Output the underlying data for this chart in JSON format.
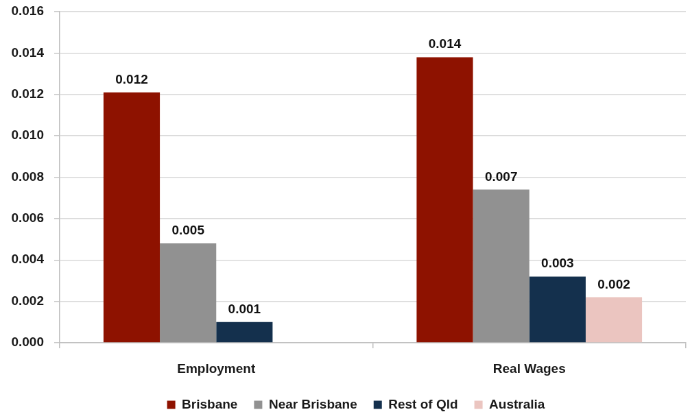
{
  "chart_data": {
    "type": "bar",
    "categories": [
      "Employment",
      "Real Wages"
    ],
    "series": [
      {
        "name": "Brisbane",
        "color": "#8e1200",
        "values": [
          0.0121,
          0.0138
        ],
        "value_labels": [
          "0.012",
          "0.014"
        ]
      },
      {
        "name": "Near Brisbane",
        "color": "#919191",
        "values": [
          0.0048,
          0.0074
        ],
        "value_labels": [
          "0.005",
          "0.007"
        ]
      },
      {
        "name": "Rest of Qld",
        "color": "#14304d",
        "values": [
          0.001,
          0.0032
        ],
        "value_labels": [
          "0.001",
          "0.003"
        ]
      },
      {
        "name": "Australia",
        "color": "#ebc5c0",
        "values": [
          null,
          0.0022
        ],
        "value_labels": [
          null,
          "0.002"
        ]
      }
    ],
    "ylim": [
      0,
      0.016
    ],
    "yticks": [
      {
        "value": 0,
        "label": "0.000"
      },
      0.002,
      0.004,
      0.006,
      0.008,
      {
        "value": 0.01,
        "label": "0.010"
      },
      0.012,
      0.014,
      0.016
    ],
    "grid": "y",
    "legend": "bottom"
  }
}
